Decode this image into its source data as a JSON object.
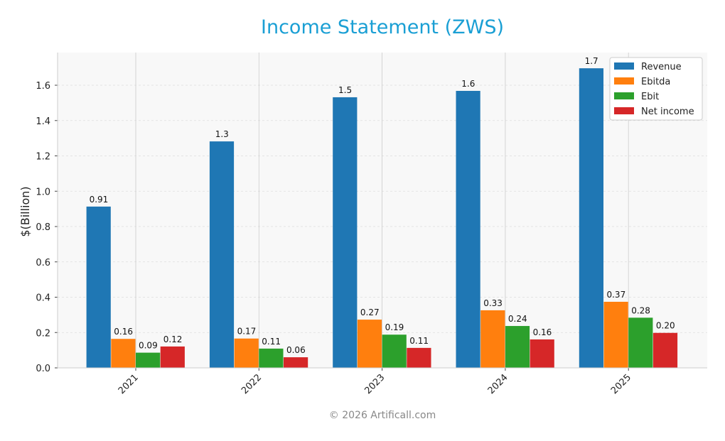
{
  "chart_data": {
    "type": "bar",
    "title": "Income Statement (ZWS)",
    "ylabel": "$(Billion)",
    "footer": "© 2026 Artificall.com",
    "categories": [
      "2021",
      "2022",
      "2023",
      "2024",
      "2025"
    ],
    "series": [
      {
        "name": "Revenue",
        "color": "#1f77b4",
        "values": [
          0.913,
          1.282,
          1.532,
          1.568,
          1.696
        ],
        "value_labels": [
          "0.91",
          "1.3",
          "1.5",
          "1.6",
          "1.7"
        ]
      },
      {
        "name": "Ebitda",
        "color": "#ff7f0e",
        "values": [
          0.164,
          0.166,
          0.273,
          0.326,
          0.374
        ],
        "value_labels": [
          "0.16",
          "0.17",
          "0.27",
          "0.33",
          "0.37"
        ]
      },
      {
        "name": "Ebit",
        "color": "#2ca02c",
        "values": [
          0.086,
          0.109,
          0.188,
          0.237,
          0.284
        ],
        "value_labels": [
          "0.09",
          "0.11",
          "0.19",
          "0.24",
          "0.28"
        ]
      },
      {
        "name": "Net income",
        "color": "#d62728",
        "values": [
          0.121,
          0.06,
          0.113,
          0.161,
          0.198
        ],
        "value_labels": [
          "0.12",
          "0.06",
          "0.11",
          "0.16",
          "0.20"
        ]
      }
    ],
    "ylim": [
      0,
      1.785
    ],
    "yticks": [
      {
        "value": 0,
        "label": "0.0"
      },
      0.2,
      0.4,
      0.6,
      0.8,
      {
        "value": 1,
        "label": "1.0"
      },
      1.2,
      1.4,
      1.6
    ],
    "grid": true,
    "legend": "upper right"
  }
}
